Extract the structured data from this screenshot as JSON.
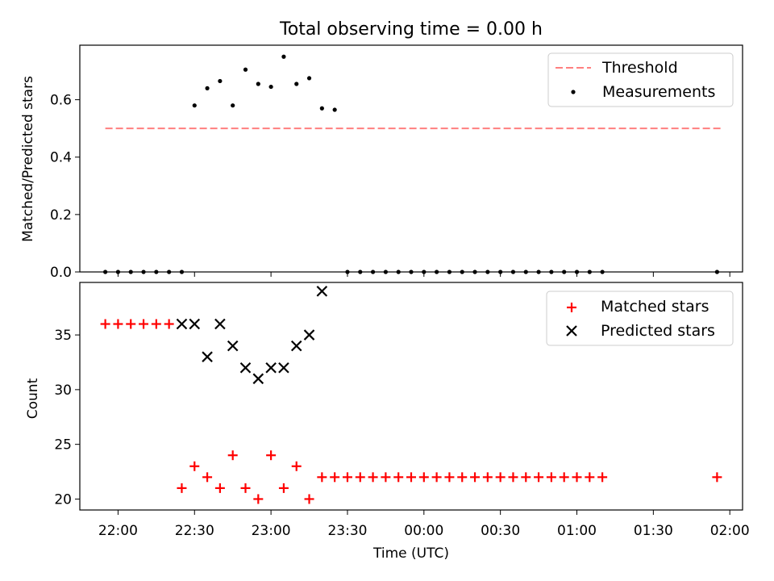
{
  "figure": {
    "title": "Total observing time = 0.00 h"
  },
  "chart_data": [
    {
      "type": "scatter",
      "title": "Total observing time = 0.00 h",
      "xlabel": "",
      "ylabel": "Matched/Predicted stars",
      "xlim": [
        "21:45",
        "02:05"
      ],
      "ylim": [
        0,
        0.79
      ],
      "yticks": [
        0.0,
        0.2,
        0.4,
        0.6
      ],
      "ytick_labels": [
        "0.0",
        "0.2",
        "0.4",
        "0.6"
      ],
      "legend": {
        "position": "top-right",
        "entries": [
          "Threshold",
          "Measurements"
        ]
      },
      "series": [
        {
          "name": "Threshold",
          "kind": "line",
          "style": "dashed",
          "color": "#ff7f7f",
          "x": [
            "21:55",
            "01:57"
          ],
          "y": [
            0.5,
            0.5
          ]
        },
        {
          "name": "Measurements",
          "kind": "scatter",
          "color": "#000000",
          "x": [
            "21:55",
            "22:00",
            "22:05",
            "22:10",
            "22:15",
            "22:20",
            "22:25",
            "22:30",
            "22:35",
            "22:40",
            "22:45",
            "22:50",
            "22:55",
            "23:00",
            "23:05",
            "23:10",
            "23:15",
            "23:20",
            "23:25",
            "23:30",
            "23:35",
            "23:40",
            "23:45",
            "23:50",
            "23:55",
            "00:00",
            "00:05",
            "00:10",
            "00:15",
            "00:20",
            "00:25",
            "00:30",
            "00:35",
            "00:40",
            "00:45",
            "00:50",
            "00:55",
            "01:00",
            "01:05",
            "01:10",
            "01:55"
          ],
          "y": [
            0,
            0,
            0,
            0,
            0,
            0,
            0,
            0.58,
            0.64,
            0.665,
            0.58,
            0.705,
            0.655,
            0.645,
            0.75,
            0.655,
            0.675,
            0.57,
            0.565,
            0,
            0,
            0,
            0,
            0,
            0,
            0,
            0,
            0,
            0,
            0,
            0,
            0,
            0,
            0,
            0,
            0,
            0,
            0,
            0,
            0,
            0
          ]
        }
      ]
    },
    {
      "type": "scatter",
      "xlabel": "Time (UTC)",
      "ylabel": "Count",
      "xlim": [
        "21:45",
        "02:05"
      ],
      "ylim": [
        19.0,
        39.8
      ],
      "yticks": [
        20,
        25,
        30,
        35
      ],
      "ytick_labels": [
        "20",
        "25",
        "30",
        "35"
      ],
      "xticks": [
        "22:00",
        "22:30",
        "23:00",
        "23:30",
        "00:00",
        "00:30",
        "01:00",
        "01:30",
        "02:00"
      ],
      "legend": {
        "position": "top-right",
        "entries": [
          "Matched stars",
          "Predicted stars"
        ]
      },
      "series": [
        {
          "name": "Matched stars",
          "marker": "+",
          "color": "#ff0000",
          "x": [
            "21:55",
            "22:00",
            "22:05",
            "22:10",
            "22:15",
            "22:20",
            "22:25",
            "22:30",
            "22:35",
            "22:40",
            "22:45",
            "22:50",
            "22:55",
            "23:00",
            "23:05",
            "23:10",
            "23:15",
            "23:20",
            "23:25",
            "23:30",
            "23:35",
            "23:40",
            "23:45",
            "23:50",
            "23:55",
            "00:00",
            "00:05",
            "00:10",
            "00:15",
            "00:20",
            "00:25",
            "00:30",
            "00:35",
            "00:40",
            "00:45",
            "00:50",
            "00:55",
            "01:00",
            "01:05",
            "01:10",
            "01:55"
          ],
          "y": [
            36,
            36,
            36,
            36,
            36,
            36,
            21,
            23,
            22,
            21,
            24,
            21,
            20,
            24,
            21,
            23,
            20,
            22,
            22,
            22,
            22,
            22,
            22,
            22,
            22,
            22,
            22,
            22,
            22,
            22,
            22,
            22,
            22,
            22,
            22,
            22,
            22,
            22,
            22,
            22,
            22
          ]
        },
        {
          "name": "Predicted stars",
          "marker": "x",
          "color": "#000000",
          "x": [
            "22:25",
            "22:30",
            "22:35",
            "22:40",
            "22:45",
            "22:50",
            "22:55",
            "23:00",
            "23:05",
            "23:10",
            "23:15",
            "23:20"
          ],
          "y": [
            36,
            36,
            33,
            36,
            34,
            32,
            31,
            32,
            32,
            34,
            35,
            39
          ]
        }
      ]
    }
  ]
}
